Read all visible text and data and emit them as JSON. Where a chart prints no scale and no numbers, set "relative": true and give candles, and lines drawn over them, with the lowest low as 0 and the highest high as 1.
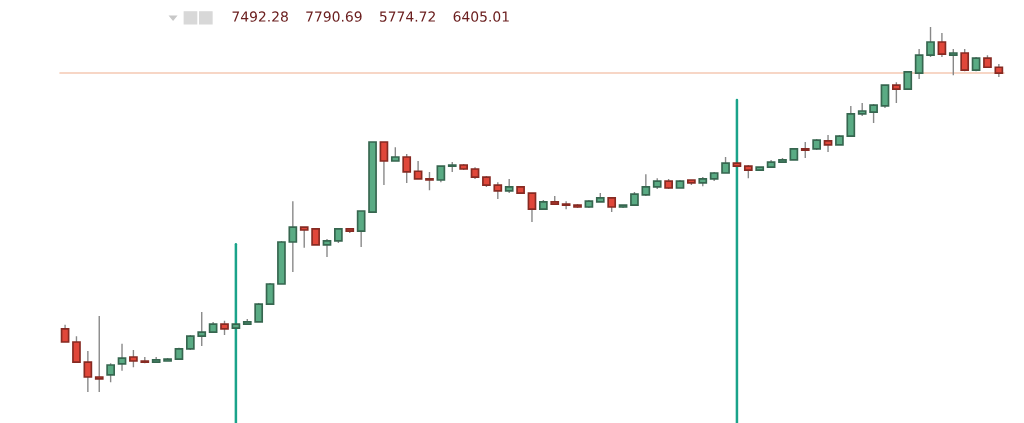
{
  "chart_data": {
    "type": "candlestick",
    "relative": true,
    "grid": false,
    "legend": false,
    "annotations": [
      "7492.28",
      "7790.69",
      "5774.72",
      "6405.01"
    ],
    "categories": [
      null,
      null,
      null,
      null,
      null,
      null,
      null,
      null,
      null,
      null,
      null,
      null,
      null,
      null,
      null,
      null,
      null,
      null,
      null,
      null,
      null,
      null,
      null,
      null,
      null,
      null,
      null,
      null,
      null,
      null,
      null,
      null,
      null,
      null,
      null,
      null,
      null,
      null,
      null,
      null,
      null,
      null,
      null,
      null,
      null,
      null,
      null,
      null,
      null,
      null,
      null,
      null,
      null,
      null,
      null,
      null,
      null,
      null,
      null,
      null,
      null,
      null,
      null,
      null,
      null,
      null,
      null,
      null,
      null,
      null,
      null,
      null,
      null,
      null,
      null,
      null,
      null,
      null,
      null,
      null,
      null,
      null,
      null
    ],
    "ohlc": [
      [
        0.173,
        0.184,
        0.137,
        0.137
      ],
      [
        0.137,
        0.153,
        0.082,
        0.082
      ],
      [
        0.082,
        0.112,
        0,
        0.041
      ],
      [
        0.041,
        0.208,
        0,
        0.036
      ],
      [
        0.047,
        0.079,
        0.027,
        0.074
      ],
      [
        0.077,
        0.132,
        0.058,
        0.093
      ],
      [
        0.096,
        0.115,
        0.068,
        0.085
      ],
      [
        0.085,
        0.096,
        0.079,
        0.082
      ],
      [
        0.082,
        0.096,
        0.082,
        0.088
      ],
      [
        0.085,
        0.093,
        0.085,
        0.09
      ],
      [
        0.09,
        0.121,
        0.09,
        0.118
      ],
      [
        0.118,
        0.156,
        0.115,
        0.153
      ],
      [
        0.153,
        0.219,
        0.126,
        0.164
      ],
      [
        0.164,
        0.192,
        0.162,
        0.186
      ],
      [
        0.186,
        0.195,
        0.156,
        0.173
      ],
      [
        0.175,
        0.186,
        0.175,
        0.186
      ],
      [
        0.186,
        0.2,
        0.186,
        0.192
      ],
      [
        0.192,
        0.244,
        0.192,
        0.241
      ],
      [
        0.241,
        0.299,
        0.241,
        0.296
      ],
      [
        0.296,
        0.414,
        0.296,
        0.411
      ],
      [
        0.411,
        0.523,
        0.329,
        0.452
      ],
      [
        0.452,
        0.452,
        0.395,
        0.444
      ],
      [
        0.447,
        0.447,
        0.403,
        0.403
      ],
      [
        0.403,
        0.419,
        0.37,
        0.414
      ],
      [
        0.414,
        0.449,
        0.408,
        0.447
      ],
      [
        0.447,
        0.447,
        0.436,
        0.441
      ],
      [
        0.441,
        0.496,
        0.397,
        0.496
      ],
      [
        0.493,
        0.685,
        0.493,
        0.685
      ],
      [
        0.685,
        0.685,
        0.567,
        0.633
      ],
      [
        0.633,
        0.671,
        0.633,
        0.644
      ],
      [
        0.644,
        0.652,
        0.573,
        0.603
      ],
      [
        0.605,
        0.633,
        0.584,
        0.584
      ],
      [
        0.584,
        0.603,
        0.553,
        0.581
      ],
      [
        0.581,
        0.619,
        0.575,
        0.619
      ],
      [
        0.619,
        0.63,
        0.603,
        0.622
      ],
      [
        0.622,
        0.625,
        0.608,
        0.611
      ],
      [
        0.611,
        0.616,
        0.584,
        0.589
      ],
      [
        0.589,
        0.592,
        0.562,
        0.567
      ],
      [
        0.567,
        0.575,
        0.529,
        0.551
      ],
      [
        0.551,
        0.584,
        0.545,
        0.562
      ],
      [
        0.562,
        0.562,
        0.545,
        0.545
      ],
      [
        0.545,
        0.545,
        0.466,
        0.501
      ],
      [
        0.501,
        0.526,
        0.499,
        0.521
      ],
      [
        0.521,
        0.537,
        0.515,
        0.515
      ],
      [
        0.515,
        0.523,
        0.501,
        0.512
      ],
      [
        0.512,
        0.515,
        0.504,
        0.507
      ],
      [
        0.507,
        0.526,
        0.504,
        0.523
      ],
      [
        0.521,
        0.545,
        0.521,
        0.532
      ],
      [
        0.532,
        0.534,
        0.493,
        0.507
      ],
      [
        0.507,
        0.512,
        0.504,
        0.512
      ],
      [
        0.512,
        0.548,
        0.512,
        0.542
      ],
      [
        0.54,
        0.597,
        0.537,
        0.562
      ],
      [
        0.562,
        0.586,
        0.556,
        0.578
      ],
      [
        0.578,
        0.584,
        0.556,
        0.559
      ],
      [
        0.559,
        0.581,
        0.559,
        0.578
      ],
      [
        0.581,
        0.581,
        0.567,
        0.573
      ],
      [
        0.573,
        0.589,
        0.564,
        0.584
      ],
      [
        0.584,
        0.603,
        0.578,
        0.6
      ],
      [
        0.6,
        0.644,
        0.6,
        0.627
      ],
      [
        0.627,
        0.627,
        0.619,
        0.619
      ],
      [
        0.619,
        0.622,
        0.586,
        0.608
      ],
      [
        0.608,
        0.616,
        0.608,
        0.616
      ],
      [
        0.616,
        0.636,
        0.616,
        0.63
      ],
      [
        0.63,
        0.641,
        0.63,
        0.636
      ],
      [
        0.636,
        0.668,
        0.636,
        0.666
      ],
      [
        0.666,
        0.685,
        0.641,
        0.663
      ],
      [
        0.666,
        0.693,
        0.663,
        0.69
      ],
      [
        0.688,
        0.704,
        0.658,
        0.677
      ],
      [
        0.677,
        0.704,
        0.677,
        0.701
      ],
      [
        0.701,
        0.784,
        0.701,
        0.762
      ],
      [
        0.762,
        0.792,
        0.756,
        0.77
      ],
      [
        0.767,
        0.789,
        0.737,
        0.786
      ],
      [
        0.784,
        0.841,
        0.778,
        0.841
      ],
      [
        0.841,
        0.849,
        0.792,
        0.83
      ],
      [
        0.83,
        0.877,
        0.83,
        0.877
      ],
      [
        0.874,
        0.94,
        0.858,
        0.923
      ],
      [
        0.923,
        1,
        0.918,
        0.959
      ],
      [
        0.959,
        0.984,
        0.918,
        0.926
      ],
      [
        0.923,
        0.94,
        0.868,
        0.929
      ],
      [
        0.929,
        0.94,
        0.879,
        0.882
      ],
      [
        0.882,
        0.918,
        0.879,
        0.915
      ],
      [
        0.915,
        0.923,
        0.888,
        0.89
      ],
      [
        0.89,
        0.899,
        0.863,
        0.874
      ]
    ],
    "colors": [
      "#e0473a",
      "#e0473a",
      "#e0473a",
      "#e0473a",
      "#5aab84",
      "#5aab84",
      "#e0473a",
      "#e0473a",
      "#5aab84",
      "#5aab84",
      "#5aab84",
      "#5aab84",
      "#5aab84",
      "#5aab84",
      "#e0473a",
      "#5aab84",
      "#5aab84",
      "#5aab84",
      "#5aab84",
      "#5aab84",
      "#5aab84",
      "#e0473a",
      "#e0473a",
      "#5aab84",
      "#5aab84",
      "#e0473a",
      "#5aab84",
      "#5aab84",
      "#e0473a",
      "#5aab84",
      "#e0473a",
      "#e0473a",
      "#e0473a",
      "#5aab84",
      "#5aab84",
      "#e0473a",
      "#e0473a",
      "#e0473a",
      "#e0473a",
      "#5aab84",
      "#e0473a",
      "#e0473a",
      "#5aab84",
      "#e0473a",
      "#e0473a",
      "#e0473a",
      "#5aab84",
      "#5aab84",
      "#e0473a",
      "#5aab84",
      "#5aab84",
      "#5aab84",
      "#5aab84",
      "#e0473a",
      "#5aab84",
      "#e0473a",
      "#5aab84",
      "#5aab84",
      "#5aab84",
      "#e0473a",
      "#e0473a",
      "#5aab84",
      "#5aab84",
      "#5aab84",
      "#5aab84",
      "#e0473a",
      "#5aab84",
      "#e0473a",
      "#5aab84",
      "#5aab84",
      "#5aab84",
      "#5aab84",
      "#5aab84",
      "#e0473a",
      "#5aab84",
      "#5aab84",
      "#5aab84",
      "#e0473a",
      "#5aab84",
      "#e0473a",
      "#5aab84",
      "#e0473a",
      "#e0473a"
    ],
    "ref_lines": [
      {
        "axis": "y",
        "value": 0.874,
        "color": "#f5c9b3"
      }
    ]
  }
}
